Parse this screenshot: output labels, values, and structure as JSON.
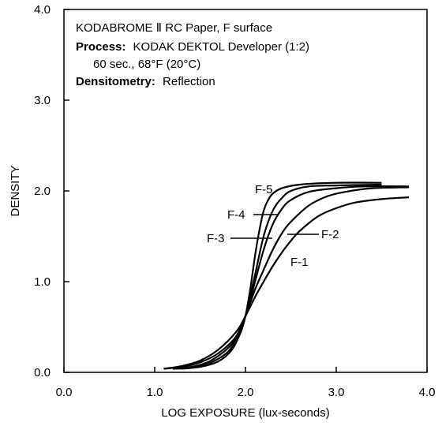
{
  "chart_data": {
    "type": "line",
    "xlabel": "LOG EXPOSURE (lux-seconds)",
    "ylabel": "DENSITY",
    "xlim": [
      0.0,
      4.0
    ],
    "ylim": [
      0.0,
      4.0
    ],
    "x_ticks": [
      "0.0",
      "1.0",
      "2.0",
      "3.0",
      "4.0"
    ],
    "y_ticks": [
      "0.0",
      "1.0",
      "2.0",
      "3.0",
      "4.0"
    ],
    "grid": false,
    "annotation": {
      "line1": "KODABROME Ⅱ RC Paper, F surface",
      "process_label": "Process:",
      "process_value": "KODAK DEKTOL Developer (1:2)",
      "process_detail": "60 sec., 68°F (20°C)",
      "densitometry_label": "Densitometry:",
      "densitometry_value": "Reflection"
    },
    "series": [
      {
        "name": "F-1",
        "points": [
          [
            1.1,
            0.04
          ],
          [
            1.3,
            0.07
          ],
          [
            1.5,
            0.13
          ],
          [
            1.7,
            0.25
          ],
          [
            1.9,
            0.45
          ],
          [
            2.0,
            0.62
          ],
          [
            2.1,
            0.82
          ],
          [
            2.2,
            1.0
          ],
          [
            2.3,
            1.17
          ],
          [
            2.4,
            1.32
          ],
          [
            2.5,
            1.45
          ],
          [
            2.6,
            1.56
          ],
          [
            2.8,
            1.72
          ],
          [
            3.0,
            1.81
          ],
          [
            3.2,
            1.87
          ],
          [
            3.5,
            1.91
          ],
          [
            3.8,
            1.93
          ]
        ]
      },
      {
        "name": "F-2",
        "points": [
          [
            1.1,
            0.04
          ],
          [
            1.3,
            0.06
          ],
          [
            1.5,
            0.11
          ],
          [
            1.7,
            0.21
          ],
          [
            1.9,
            0.4
          ],
          [
            2.0,
            0.62
          ],
          [
            2.1,
            0.9
          ],
          [
            2.2,
            1.13
          ],
          [
            2.3,
            1.35
          ],
          [
            2.4,
            1.53
          ],
          [
            2.5,
            1.66
          ],
          [
            2.7,
            1.84
          ],
          [
            2.9,
            1.94
          ],
          [
            3.1,
            1.99
          ],
          [
            3.4,
            2.03
          ],
          [
            3.8,
            2.04
          ]
        ]
      },
      {
        "name": "F-3",
        "points": [
          [
            1.2,
            0.04
          ],
          [
            1.4,
            0.06
          ],
          [
            1.6,
            0.12
          ],
          [
            1.8,
            0.26
          ],
          [
            1.9,
            0.4
          ],
          [
            2.0,
            0.62
          ],
          [
            2.1,
            0.98
          ],
          [
            2.2,
            1.35
          ],
          [
            2.3,
            1.63
          ],
          [
            2.4,
            1.8
          ],
          [
            2.5,
            1.9
          ],
          [
            2.7,
            1.99
          ],
          [
            3.0,
            2.03
          ],
          [
            3.3,
            2.05
          ],
          [
            3.8,
            2.05
          ]
        ]
      },
      {
        "name": "F-4",
        "points": [
          [
            1.2,
            0.04
          ],
          [
            1.4,
            0.05
          ],
          [
            1.6,
            0.1
          ],
          [
            1.8,
            0.22
          ],
          [
            1.9,
            0.38
          ],
          [
            2.0,
            0.62
          ],
          [
            2.1,
            1.05
          ],
          [
            2.2,
            1.5
          ],
          [
            2.3,
            1.78
          ],
          [
            2.4,
            1.92
          ],
          [
            2.5,
            2.0
          ],
          [
            2.7,
            2.05
          ],
          [
            3.0,
            2.06
          ],
          [
            3.5,
            2.07
          ]
        ]
      },
      {
        "name": "F-5",
        "points": [
          [
            1.3,
            0.04
          ],
          [
            1.5,
            0.06
          ],
          [
            1.7,
            0.12
          ],
          [
            1.85,
            0.25
          ],
          [
            1.95,
            0.45
          ],
          [
            2.0,
            0.62
          ],
          [
            2.05,
            0.9
          ],
          [
            2.1,
            1.25
          ],
          [
            2.15,
            1.55
          ],
          [
            2.2,
            1.78
          ],
          [
            2.25,
            1.9
          ],
          [
            2.3,
            1.97
          ],
          [
            2.4,
            2.03
          ],
          [
            2.6,
            2.07
          ],
          [
            3.0,
            2.09
          ],
          [
            3.5,
            2.09
          ]
        ]
      }
    ]
  }
}
